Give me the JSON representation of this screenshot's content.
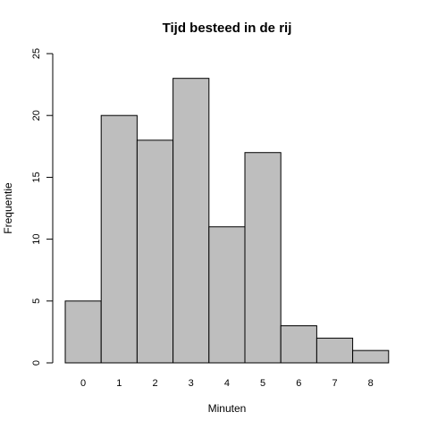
{
  "chart_data": {
    "type": "bar",
    "title": "Tijd besteed in de rij",
    "xlabel": "Minuten",
    "ylabel": "Frequentie",
    "categories": [
      "0",
      "1",
      "2",
      "3",
      "4",
      "5",
      "6",
      "7",
      "8"
    ],
    "values": [
      5,
      20,
      18,
      23,
      11,
      17,
      3,
      2,
      1
    ],
    "ylim": [
      0,
      25
    ],
    "yticks": [
      0,
      5,
      10,
      15,
      20,
      25
    ],
    "grid": false,
    "bar_color": "#bebebe",
    "edge_color": "#000000"
  }
}
